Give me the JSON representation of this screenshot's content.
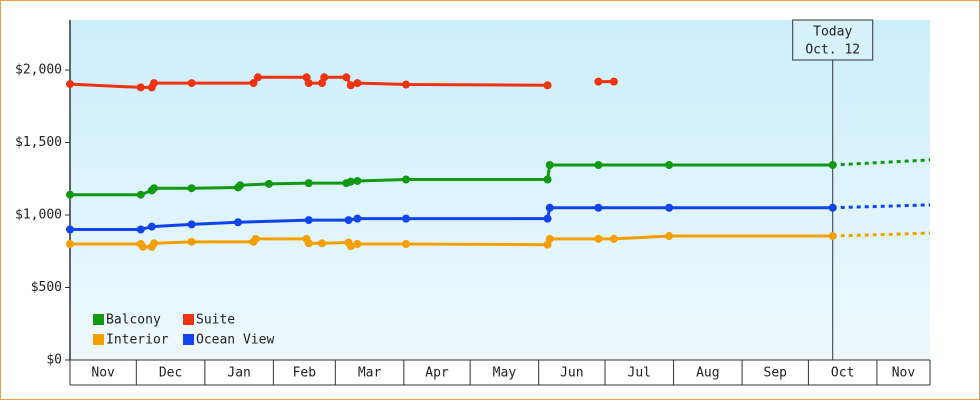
{
  "chart_data": {
    "type": "line",
    "ylim": [
      0,
      2345
    ],
    "yticks": [
      {
        "value": 0,
        "label": "$0"
      },
      {
        "value": 500,
        "label": "$500"
      },
      {
        "value": 1000,
        "label": "$1,000"
      },
      {
        "value": 1500,
        "label": "$1,500"
      },
      {
        "value": 2000,
        "label": "$2,000"
      }
    ],
    "xlim": [
      0,
      389
    ],
    "xticks": [
      {
        "value": 0,
        "label": "Nov"
      },
      {
        "value": 30,
        "label": "Dec"
      },
      {
        "value": 61,
        "label": "Jan"
      },
      {
        "value": 92,
        "label": "Feb"
      },
      {
        "value": 120,
        "label": "Mar"
      },
      {
        "value": 151,
        "label": "Apr"
      },
      {
        "value": 181,
        "label": "May"
      },
      {
        "value": 212,
        "label": "Jun"
      },
      {
        "value": 242,
        "label": "Jul"
      },
      {
        "value": 273,
        "label": "Aug"
      },
      {
        "value": 304,
        "label": "Sep"
      },
      {
        "value": 334,
        "label": "Oct"
      },
      {
        "value": 365,
        "label": "Nov"
      }
    ],
    "annotation": {
      "x": 345,
      "lines": [
        "Today",
        "Oct. 12"
      ]
    },
    "series": [
      {
        "name": "Balcony",
        "color": "#119911",
        "x": [
          0,
          32,
          37,
          38,
          55,
          76,
          77,
          90,
          108,
          125,
          127,
          130,
          152,
          216,
          217,
          239,
          271,
          345
        ],
        "values": [
          1140,
          1140,
          1170,
          1185,
          1185,
          1190,
          1205,
          1215,
          1220,
          1220,
          1230,
          1235,
          1245,
          1245,
          1345,
          1345,
          1345,
          1345
        ],
        "forecast": {
          "x": [
            345,
            389
          ],
          "values": [
            1345,
            1380
          ]
        }
      },
      {
        "name": "Suite",
        "color": "#ee3311",
        "x": [
          0,
          32,
          37,
          38,
          55,
          83,
          85,
          107,
          108,
          114,
          115,
          125,
          127,
          130,
          152,
          216,
          228,
          239,
          246
        ],
        "values": [
          1903,
          1880,
          1880,
          1910,
          1910,
          1910,
          1950,
          1950,
          1910,
          1910,
          1950,
          1950,
          1895,
          1910,
          1900,
          1895,
          null,
          1920,
          1920
        ]
      },
      {
        "name": "Interior",
        "color": "#f5a000",
        "x": [
          0,
          32,
          33,
          37,
          38,
          55,
          83,
          84,
          107,
          108,
          114,
          126,
          127,
          130,
          152,
          216,
          217,
          239,
          246,
          271,
          345
        ],
        "values": [
          800,
          800,
          780,
          780,
          805,
          815,
          815,
          835,
          835,
          805,
          805,
          810,
          785,
          800,
          800,
          795,
          835,
          835,
          835,
          855,
          855
        ],
        "forecast": {
          "x": [
            345,
            389
          ],
          "values": [
            855,
            875
          ]
        }
      },
      {
        "name": "Ocean View",
        "color": "#1144ee",
        "x": [
          0,
          32,
          37,
          55,
          76,
          108,
          126,
          130,
          152,
          216,
          217,
          239,
          271,
          345
        ],
        "values": [
          900,
          900,
          920,
          935,
          950,
          965,
          965,
          975,
          975,
          975,
          1050,
          1050,
          1050,
          1050
        ],
        "forecast": {
          "x": [
            345,
            389
          ],
          "values": [
            1050,
            1070
          ]
        }
      }
    ]
  }
}
